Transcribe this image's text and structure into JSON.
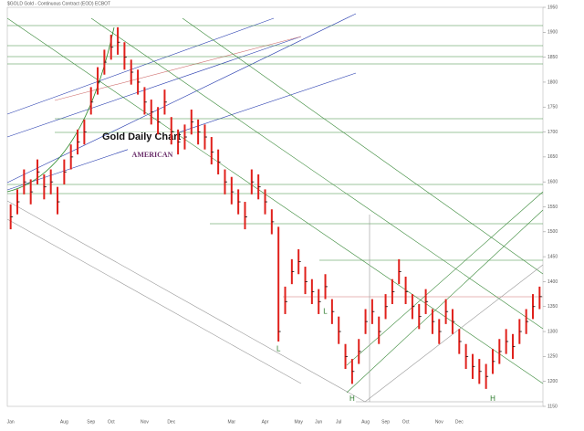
{
  "chart_data": {
    "type": "candlestick",
    "title": "Gold Daily Chart",
    "subtitle": "$GOLD Gold - Continuous Contract (EOD) ECBOT",
    "logo": "AMERICAN",
    "color": "#e0201b",
    "categories": [
      "Jan",
      null,
      null,
      null,
      null,
      null,
      null,
      null,
      "Aug",
      null,
      null,
      null,
      "Sep",
      null,
      null,
      "Oct",
      null,
      null,
      null,
      null,
      "Nov",
      null,
      null,
      null,
      "Dec",
      null,
      null,
      null,
      null,
      null,
      null,
      null,
      null,
      "Mar",
      null,
      null,
      null,
      null,
      "Apr",
      null,
      null,
      null,
      null,
      "May",
      null,
      null,
      "Jun",
      null,
      null,
      "Jul",
      null,
      null,
      null,
      "Aug",
      null,
      null,
      "Sep",
      null,
      null,
      "Oct",
      null,
      null,
      null,
      null,
      "Nov",
      null,
      null,
      "Dec",
      null,
      null,
      null,
      null,
      null,
      null,
      null,
      null,
      null,
      null,
      null,
      null
    ],
    "high": [
      1555,
      1585,
      1625,
      1605,
      1645,
      1615,
      1625,
      1590,
      1645,
      1675,
      1705,
      1725,
      1790,
      1830,
      1865,
      1895,
      1910,
      1880,
      1845,
      1825,
      1790,
      1765,
      1750,
      1785,
      1730,
      1705,
      1715,
      1745,
      1725,
      1715,
      1690,
      1665,
      1625,
      1610,
      1585,
      1560,
      1625,
      1615,
      1585,
      1545,
      1510,
      1390,
      1445,
      1465,
      1430,
      1405,
      1385,
      1415,
      1365,
      1330,
      1275,
      1245,
      1285,
      1345,
      1365,
      1330,
      1375,
      1405,
      1445,
      1410,
      1375,
      1355,
      1385,
      1345,
      1325,
      1365,
      1345,
      1305,
      1275,
      1255,
      1245,
      1235,
      1265,
      1285,
      1305,
      1295,
      1325,
      1345,
      1375,
      1390
    ],
    "low": [
      1505,
      1535,
      1575,
      1555,
      1595,
      1565,
      1575,
      1535,
      1595,
      1625,
      1655,
      1675,
      1735,
      1775,
      1815,
      1845,
      1855,
      1825,
      1795,
      1775,
      1735,
      1715,
      1695,
      1735,
      1675,
      1655,
      1665,
      1695,
      1675,
      1665,
      1635,
      1615,
      1575,
      1555,
      1535,
      1505,
      1575,
      1565,
      1535,
      1495,
      1280,
      1335,
      1395,
      1415,
      1375,
      1355,
      1335,
      1365,
      1315,
      1275,
      1225,
      1195,
      1235,
      1295,
      1315,
      1275,
      1325,
      1355,
      1395,
      1355,
      1325,
      1305,
      1335,
      1295,
      1275,
      1315,
      1295,
      1255,
      1225,
      1205,
      1195,
      1185,
      1215,
      1235,
      1255,
      1245,
      1275,
      1295,
      1325,
      1345
    ],
    "values": [
      1530,
      1560,
      1600,
      1580,
      1620,
      1590,
      1600,
      1560,
      1620,
      1650,
      1680,
      1700,
      1760,
      1800,
      1840,
      1870,
      1880,
      1850,
      1820,
      1800,
      1760,
      1740,
      1720,
      1760,
      1700,
      1680,
      1690,
      1720,
      1700,
      1690,
      1660,
      1640,
      1600,
      1580,
      1560,
      1530,
      1600,
      1590,
      1560,
      1520,
      1300,
      1360,
      1420,
      1440,
      1400,
      1380,
      1360,
      1390,
      1340,
      1300,
      1250,
      1220,
      1260,
      1320,
      1340,
      1300,
      1350,
      1380,
      1420,
      1380,
      1350,
      1330,
      1360,
      1320,
      1300,
      1340,
      1320,
      1280,
      1250,
      1230,
      1220,
      1210,
      1240,
      1260,
      1280,
      1270,
      1300,
      1320,
      1350,
      1370
    ],
    "ylim": [
      1150,
      1950
    ],
    "yticks": [
      1150,
      1200,
      1250,
      1300,
      1350,
      1400,
      1450,
      1500,
      1550,
      1600,
      1650,
      1700,
      1750,
      1800,
      1850,
      1900,
      1950
    ],
    "annotations": [
      {
        "text": "L",
        "index": 40,
        "price": 1265
      },
      {
        "text": "L",
        "index": 47,
        "price": 1340
      },
      {
        "text": "H",
        "index": 51,
        "price": 1165
      },
      {
        "text": "H",
        "index": 72,
        "price": 1165
      }
    ]
  }
}
